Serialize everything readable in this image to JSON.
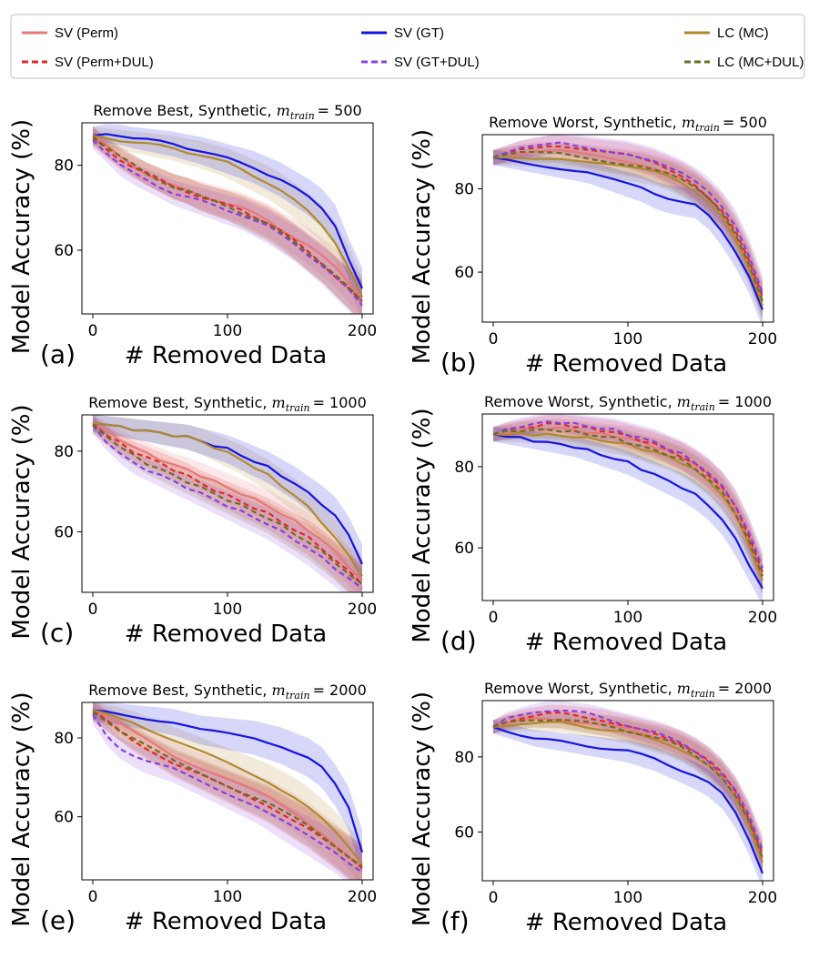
{
  "chart_data": {
    "type": "line",
    "xlabel": "# Removed Data",
    "ylabel": "Model Accuracy (%)",
    "xlim": [
      0,
      200
    ],
    "x_ticks": [
      0,
      100,
      200
    ],
    "x": [
      0,
      10,
      20,
      30,
      40,
      50,
      60,
      70,
      80,
      90,
      100,
      110,
      120,
      130,
      140,
      150,
      160,
      170,
      180,
      190,
      200
    ],
    "legend": [
      {
        "key": "perm",
        "label": "SV (Perm)",
        "color": "#e8787a",
        "dashed": false
      },
      {
        "key": "perm_dul",
        "label": "SV (Perm+DUL)",
        "color": "#e02a2a",
        "dashed": true
      },
      {
        "key": "gt",
        "label": "SV (GT)",
        "color": "#1414e0",
        "dashed": false
      },
      {
        "key": "gt_dul",
        "label": "SV (GT+DUL)",
        "color": "#8a3fe0",
        "dashed": true
      },
      {
        "key": "mc",
        "label": "LC (MC)",
        "color": "#b08a2e",
        "dashed": false
      },
      {
        "key": "mc_dul",
        "label": "LC (MC+DUL)",
        "color": "#6e6e1e",
        "dashed": true
      }
    ],
    "panels": [
      {
        "id": "a",
        "label": "(a)",
        "title": "Remove Best, Synthetic, ",
        "title_math": "m",
        "title_sub": "train",
        "title_val": "= 500",
        "ylim": [
          45,
          90
        ],
        "y_ticks": [
          60,
          80
        ],
        "band": 3.5,
        "series": {
          "perm": [
            87,
            84.5,
            82,
            80,
            78,
            76.5,
            75,
            74,
            73,
            72,
            71,
            70,
            68.5,
            67,
            65,
            63,
            61,
            58.5,
            56,
            52.5,
            49
          ],
          "perm_dul": [
            87,
            84,
            81.5,
            79.5,
            78,
            76.5,
            75,
            74,
            72.5,
            71.5,
            70.5,
            69.5,
            68,
            66.5,
            64.5,
            62,
            59.5,
            57,
            54,
            51,
            48
          ],
          "gt": [
            87,
            87.5,
            87.2,
            86.5,
            86,
            85.5,
            85,
            84.2,
            83.5,
            82.5,
            81.5,
            80.5,
            79.5,
            78,
            76.5,
            74.5,
            72.5,
            70,
            66,
            58,
            51
          ],
          "gt_dul": [
            86,
            83,
            80,
            78,
            76.5,
            75,
            73.5,
            72.5,
            71.5,
            70.5,
            69.5,
            68.5,
            67,
            65.5,
            63.5,
            61.5,
            59,
            56.5,
            53.5,
            50.5,
            47
          ],
          "mc": [
            87,
            86.5,
            86,
            85.5,
            85,
            84.5,
            84,
            83.2,
            82.5,
            81.5,
            80.5,
            79,
            77.5,
            76,
            74,
            71.5,
            69,
            66,
            62,
            56,
            49
          ],
          "mc_dul": [
            86.5,
            84.5,
            82,
            80,
            78,
            76.5,
            75,
            74,
            72.5,
            71.5,
            70.5,
            69,
            67.5,
            66,
            64,
            62,
            59.5,
            57,
            54,
            51,
            48
          ]
        }
      },
      {
        "id": "b",
        "label": "(b)",
        "title": "Remove Worst, Synthetic, ",
        "title_math": "m",
        "title_sub": "train",
        "title_val": "= 500",
        "ylim": [
          48,
          93
        ],
        "y_ticks": [
          60,
          80
        ],
        "band": 3,
        "series": {
          "perm": [
            87.5,
            88,
            88.5,
            89,
            89,
            89,
            88.5,
            88,
            87.5,
            87,
            86.5,
            86,
            85,
            84,
            82.5,
            80.5,
            78,
            74,
            68,
            62,
            53
          ],
          "perm_dul": [
            87.5,
            88.5,
            89.5,
            90,
            90.5,
            90.5,
            90,
            89.5,
            89,
            88.5,
            88,
            87,
            86,
            84.5,
            83,
            81,
            78,
            75,
            70,
            63,
            54
          ],
          "gt": [
            87.5,
            87,
            86.5,
            86,
            85.5,
            85,
            84.5,
            84,
            83,
            82,
            81,
            80,
            78.5,
            77.5,
            77,
            76.5,
            74,
            70,
            65,
            59,
            51
          ],
          "gt_dul": [
            87.5,
            88.5,
            89.5,
            90,
            90.5,
            91,
            90.5,
            90,
            89.5,
            89,
            88.5,
            87.5,
            86.5,
            85,
            83.5,
            81.5,
            79,
            75.5,
            71,
            64,
            55
          ],
          "mc": [
            87.5,
            87.5,
            87.5,
            87.5,
            87.5,
            87.5,
            87,
            86.5,
            86,
            85.5,
            85,
            84.5,
            84,
            83,
            81.5,
            79.5,
            77,
            73.5,
            68,
            61,
            52
          ],
          "mc_dul": [
            87.5,
            88,
            88.5,
            88.5,
            88.5,
            88.5,
            88,
            87.5,
            87,
            86.5,
            86,
            85.5,
            84.5,
            83.5,
            82,
            80,
            77.5,
            74,
            69,
            62,
            53
          ]
        }
      },
      {
        "id": "c",
        "label": "(c)",
        "title": "Remove Best, Synthetic, ",
        "title_math": "m",
        "title_sub": "train",
        "title_val": "= 1000",
        "ylim": [
          45,
          89
        ],
        "y_ticks": [
          60,
          80
        ],
        "band": 3.5,
        "series": {
          "perm": [
            87,
            85,
            83,
            81,
            79.5,
            78,
            76.5,
            75.5,
            74,
            72.5,
            71,
            69.5,
            68,
            66.5,
            64.5,
            62.5,
            60.5,
            58,
            55,
            51.5,
            48
          ],
          "perm_dul": [
            87,
            84,
            82,
            80,
            78.5,
            77,
            75.5,
            74,
            72,
            70.5,
            69,
            67.5,
            66,
            64.5,
            62.5,
            60.5,
            58.5,
            56,
            53,
            50,
            47
          ],
          "gt": [
            87,
            86.5,
            86,
            85.5,
            85,
            84.5,
            84,
            83.5,
            82.5,
            81.5,
            80.5,
            79,
            77.5,
            76,
            74,
            72,
            69.5,
            67,
            64,
            59,
            52
          ],
          "gt_dul": [
            86.5,
            82.5,
            79.5,
            77,
            75.5,
            74,
            72.5,
            71,
            69.5,
            68,
            66.5,
            65,
            63.5,
            62,
            60,
            58,
            56,
            53.5,
            51,
            48.5,
            46
          ],
          "mc": [
            87,
            86.5,
            86,
            85.5,
            85,
            84.5,
            84,
            83.5,
            82.5,
            81,
            79.5,
            78,
            76,
            74,
            71.5,
            69,
            66,
            62.5,
            58.5,
            54,
            49
          ],
          "mc_dul": [
            86.5,
            84,
            81,
            79,
            77,
            75.5,
            74,
            72.5,
            71,
            69.5,
            68,
            66.5,
            65,
            63.5,
            61.5,
            59.5,
            57.5,
            55,
            52.5,
            49.5,
            47
          ]
        }
      },
      {
        "id": "d",
        "label": "(d)",
        "title": "Remove Worst, Synthetic, ",
        "title_math": "m",
        "title_sub": "train",
        "title_val": "= 1000",
        "ylim": [
          47,
          93
        ],
        "y_ticks": [
          60,
          80
        ],
        "band": 3,
        "series": {
          "perm": [
            88,
            88.5,
            89,
            89.5,
            89.5,
            89.5,
            89,
            88.5,
            88,
            87.5,
            87,
            86,
            85,
            84,
            82.5,
            80.5,
            78,
            74.5,
            69,
            62,
            53
          ],
          "perm_dul": [
            88,
            89,
            89.5,
            90,
            90.5,
            90.5,
            90,
            89.5,
            89,
            88.5,
            87.5,
            86.5,
            85.5,
            84,
            82.5,
            80.5,
            78,
            75,
            70,
            63,
            54
          ],
          "gt": [
            88,
            87.5,
            87,
            86.5,
            86,
            85.5,
            85,
            84,
            83,
            82,
            81,
            79.5,
            78,
            76.5,
            75,
            73,
            70.5,
            67,
            62,
            56,
            50
          ],
          "gt_dul": [
            88,
            89,
            90,
            90.5,
            91,
            91,
            90.5,
            90,
            89.5,
            89,
            88,
            87,
            86,
            84.5,
            83,
            81,
            78.5,
            75,
            70.5,
            63.5,
            55
          ],
          "mc": [
            88,
            88,
            88,
            88,
            88,
            87.5,
            87.5,
            87,
            86.5,
            86,
            85.5,
            84.5,
            83.5,
            82.5,
            81,
            79,
            76.5,
            73,
            68,
            61,
            52
          ],
          "mc_dul": [
            88,
            88.5,
            89,
            89,
            89,
            89,
            88.5,
            88,
            87.5,
            87,
            86,
            85,
            84,
            83,
            81.5,
            79.5,
            77,
            73.5,
            68.5,
            61.5,
            53
          ]
        }
      },
      {
        "id": "e",
        "label": "(e)",
        "title": "Remove Best, Synthetic, ",
        "title_math": "m",
        "title_sub": "train",
        "title_val": "= 2000",
        "ylim": [
          44,
          89
        ],
        "y_ticks": [
          60,
          80
        ],
        "band": 4,
        "series": {
          "perm": [
            87,
            85.5,
            83.5,
            81.5,
            79.5,
            77.5,
            75.5,
            74,
            72.5,
            71,
            69.5,
            68,
            66.5,
            65,
            63,
            61,
            58.5,
            56,
            53,
            50,
            47
          ],
          "perm_dul": [
            87,
            84.5,
            82,
            79.5,
            77.5,
            75.5,
            73.5,
            72,
            70.5,
            69,
            67.5,
            66,
            64.5,
            63,
            61,
            59,
            57,
            54.5,
            52,
            49.5,
            47
          ],
          "gt": [
            87,
            86.5,
            86,
            85.5,
            85,
            84.5,
            84,
            83,
            82,
            81.5,
            81,
            80.5,
            80,
            79,
            78,
            76.5,
            75,
            72.5,
            68,
            62,
            51
          ],
          "gt_dul": [
            86,
            81,
            77.5,
            75.5,
            74,
            73,
            72,
            70.5,
            69,
            67.5,
            66,
            64.5,
            63,
            61,
            59,
            57,
            55,
            53,
            51,
            48.5,
            46
          ],
          "mc": [
            87,
            86,
            85,
            84,
            82.5,
            81,
            79.5,
            78,
            76.5,
            75,
            73.5,
            72,
            70.5,
            69,
            67,
            65,
            62.5,
            59.5,
            56,
            52,
            48
          ],
          "mc_dul": [
            86.5,
            84.5,
            82,
            80,
            78,
            76,
            74,
            72.5,
            71,
            69.5,
            68,
            66.5,
            65,
            63.5,
            61.5,
            59.5,
            57.5,
            55,
            52.5,
            50,
            47.5
          ]
        }
      },
      {
        "id": "f",
        "label": "(f)",
        "title": "Remove Worst, Synthetic, ",
        "title_math": "m",
        "title_sub": "train",
        "title_val": "= 2000",
        "ylim": [
          47,
          95
        ],
        "y_ticks": [
          60,
          80
        ],
        "band": 3,
        "series": {
          "perm": [
            88,
            89,
            89.5,
            90,
            90,
            90,
            89.5,
            89,
            88.5,
            88,
            87.5,
            86.5,
            85.5,
            84.5,
            83,
            81,
            78.5,
            75,
            70,
            63,
            53
          ],
          "perm_dul": [
            88,
            89.5,
            90.5,
            91,
            91.5,
            91.5,
            91,
            90.5,
            90,
            89,
            88,
            87,
            86,
            85,
            83.5,
            81.5,
            79,
            75.5,
            70.5,
            63.5,
            54
          ],
          "gt": [
            88,
            87,
            86,
            85,
            84.5,
            84,
            83.5,
            83,
            82.5,
            82,
            81.5,
            80.5,
            79.5,
            78,
            76.5,
            75,
            73,
            70,
            65,
            58,
            49
          ],
          "gt_dul": [
            88,
            90,
            91,
            92,
            92.5,
            92.5,
            92,
            91.5,
            90.5,
            89.5,
            88.5,
            87.5,
            86.5,
            85,
            83.5,
            81.5,
            79,
            75.5,
            71,
            64,
            55
          ],
          "mc": [
            88,
            88.5,
            89,
            89,
            89,
            89,
            88.5,
            88,
            87.5,
            87,
            86.5,
            85.5,
            84.5,
            83.5,
            82,
            80,
            77.5,
            74,
            69,
            62,
            52
          ],
          "mc_dul": [
            88,
            89,
            89.5,
            90,
            90,
            90,
            89.5,
            89,
            88.5,
            88,
            87,
            86,
            85,
            84,
            82.5,
            80.5,
            78,
            74.5,
            69.5,
            62.5,
            53
          ]
        }
      }
    ]
  }
}
